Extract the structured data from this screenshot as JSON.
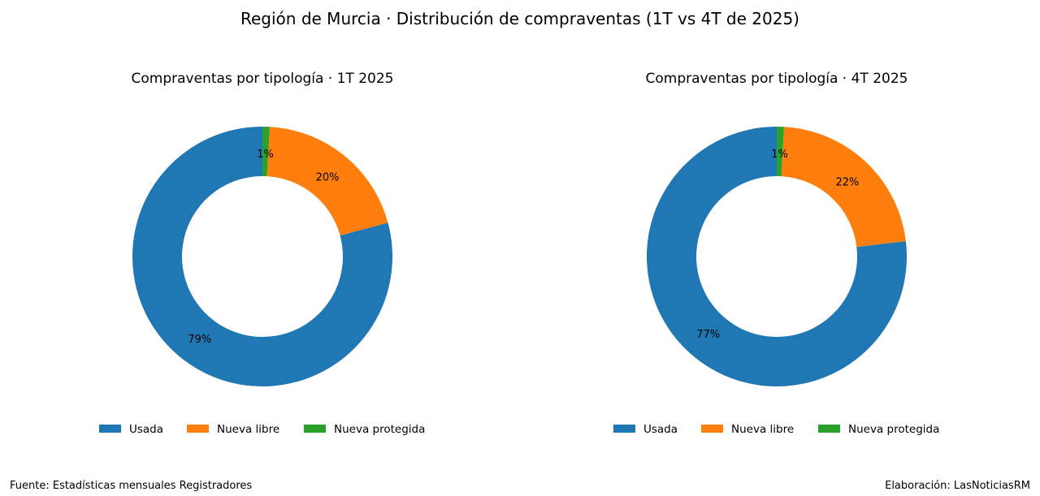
{
  "title": "Región de Murcia · Distribución de compraventas (1T vs 4T de 2025)",
  "footer": {
    "source": "Fuente: Estadísticas mensuales Registradores",
    "credit": "Elaboración: LasNoticiasRM"
  },
  "chart_data": [
    {
      "type": "pie",
      "style": "donut",
      "title": "Compraventas por tipología · 1T 2025",
      "categories": [
        "Usada",
        "Nueva libre",
        "Nueva protegida"
      ],
      "values": [
        79.2,
        19.9,
        0.9
      ],
      "pct_labels": [
        "79%",
        "20%",
        "1%"
      ],
      "colors": [
        "#1f77b4",
        "#ff7f0e",
        "#2ca02c"
      ],
      "legend": "bottom"
    },
    {
      "type": "pie",
      "style": "donut",
      "title": "Compraventas por tipología · 4T 2025",
      "categories": [
        "Usada",
        "Nueva libre",
        "Nueva protegida"
      ],
      "values": [
        76.9,
        22.2,
        0.9
      ],
      "pct_labels": [
        "77%",
        "22%",
        "1%"
      ],
      "colors": [
        "#1f77b4",
        "#ff7f0e",
        "#2ca02c"
      ],
      "legend": "bottom"
    }
  ]
}
